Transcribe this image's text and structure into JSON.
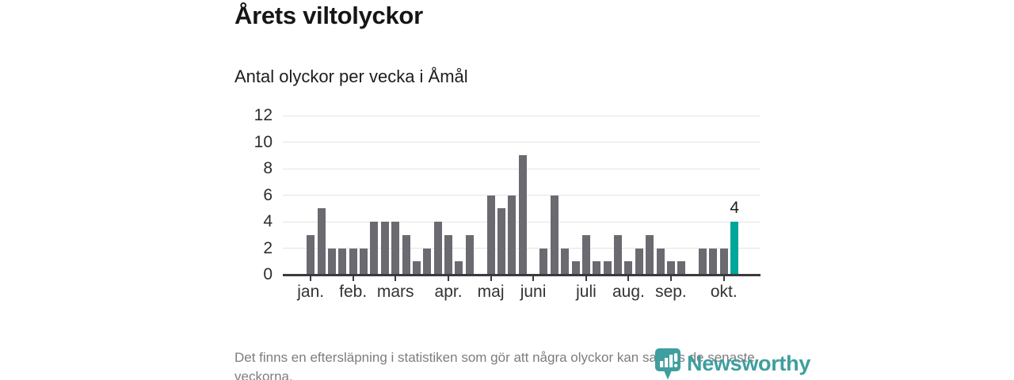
{
  "header": {
    "title": "Årets viltolyckor",
    "subtitle": "Antal olyckor per vecka i Åmål"
  },
  "chart_data": {
    "type": "bar",
    "title": "Årets viltolyckor",
    "subtitle": "Antal olyckor per vecka i Åmål",
    "x_unit": "week",
    "ylim": [
      0,
      12
    ],
    "y_ticks": [
      0,
      2,
      4,
      6,
      8,
      10,
      12
    ],
    "grid": true,
    "weekly_values": [
      3,
      5,
      2,
      2,
      2,
      2,
      4,
      4,
      4,
      3,
      1,
      2,
      4,
      3,
      1,
      3,
      0,
      6,
      5,
      6,
      9,
      0,
      2,
      6,
      2,
      1,
      3,
      1,
      1,
      3,
      1,
      2,
      3,
      2,
      1,
      1,
      0,
      2,
      2,
      2,
      4
    ],
    "month_ticks": [
      {
        "label": "jan.",
        "week_index": 0
      },
      {
        "label": "feb.",
        "week_index": 4
      },
      {
        "label": "mars",
        "week_index": 8
      },
      {
        "label": "apr.",
        "week_index": 13
      },
      {
        "label": "maj",
        "week_index": 17
      },
      {
        "label": "juni",
        "week_index": 21
      },
      {
        "label": "juli",
        "week_index": 26
      },
      {
        "label": "aug.",
        "week_index": 30
      },
      {
        "label": "sep.",
        "week_index": 34
      },
      {
        "label": "okt.",
        "week_index": 39
      }
    ],
    "highlight": {
      "week_index": 40,
      "value": 4,
      "label": "4"
    },
    "colors": {
      "bar": "#6a6a70",
      "highlight": "#00a59b",
      "axis": "#3a3a3e",
      "grid": "#e4e4e6"
    },
    "legend": null
  },
  "footer": {
    "note": "Det finns en eftersläpning i statistiken som gör att några olyckor kan saknas de senaste veckorna.",
    "logo_text": "Newsworthy",
    "logo_color": "#3f9e9e"
  }
}
